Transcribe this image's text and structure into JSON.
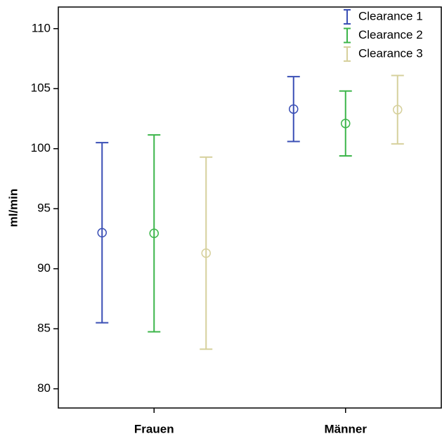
{
  "chart_data": {
    "type": "errorbar",
    "y_label": "ml/min",
    "categories": [
      "Frauen",
      "Männer"
    ],
    "series": [
      {
        "name": "Clearance 1",
        "color": "#3a4fb5",
        "values": [
          93.0,
          103.3
        ],
        "errors": [
          7.5,
          2.7
        ]
      },
      {
        "name": "Clearance 2",
        "color": "#3cb54a",
        "values": [
          92.95,
          102.1
        ],
        "errors": [
          8.2,
          2.7
        ]
      },
      {
        "name": "Clearance 3",
        "color": "#d6d09c",
        "values": [
          91.3,
          103.25
        ],
        "errors": [
          8.0,
          2.85
        ]
      }
    ],
    "ylim": [
      78.4,
      111.8
    ],
    "yticks": [
      80,
      85,
      90,
      95,
      100,
      105,
      110
    ],
    "legend": "top-right"
  }
}
